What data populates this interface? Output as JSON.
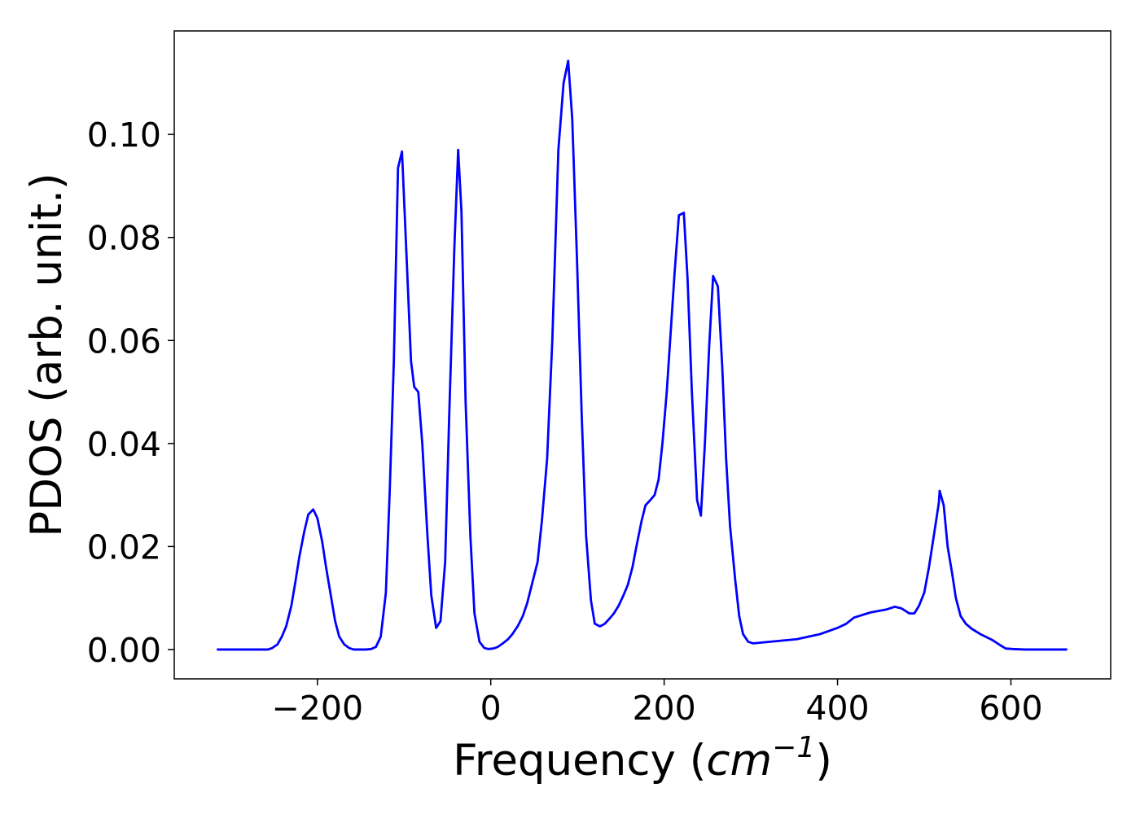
{
  "chart_data": {
    "type": "line",
    "xlabel": [
      "Frequency (",
      "cm",
      "−1",
      ")"
    ],
    "ylabel": "PDOS (arb. unit.)",
    "xlim": [
      -365.1,
      715.1
    ],
    "ylim": [
      -0.0057,
      0.1201
    ],
    "xticks": [
      {
        "value": -200,
        "label": "−200"
      },
      0,
      200,
      400,
      600
    ],
    "yticks": [
      {
        "value": 0,
        "label": "0.00"
      },
      {
        "value": 0.02,
        "label": "0.02"
      },
      {
        "value": 0.04,
        "label": "0.04"
      },
      {
        "value": 0.06,
        "label": "0.06"
      },
      {
        "value": 0.08,
        "label": "0.08"
      },
      {
        "value": 0.1,
        "label": "0.10"
      }
    ],
    "x": [
      -316,
      -257,
      -252,
      -246,
      -241,
      -236,
      -230,
      -225.5,
      -220.8,
      -215,
      -210.5,
      -204.8,
      -200,
      -194.5,
      -190,
      -184,
      -179.5,
      -174.8,
      -169,
      -163.5,
      -158,
      -143.8,
      -138,
      -132.5,
      -126.9,
      -121,
      -116.5,
      -111.8,
      -107,
      -102.4,
      -96.8,
      -92,
      -88.3,
      -83.6,
      -79,
      -73,
      -68.6,
      -63,
      -58,
      -52.6,
      -48,
      -42,
      -37.6,
      -33.8,
      -29,
      -23.5,
      -18.8,
      -13,
      -7.5,
      -3,
      3,
      8,
      14,
      20,
      25,
      31,
      37,
      42,
      48,
      54,
      59,
      65,
      71,
      78,
      84,
      89.3,
      94,
      99.6,
      105,
      110,
      115.6,
      120,
      126,
      131.5,
      137,
      142,
      147.5,
      153,
      158,
      163.5,
      168,
      174,
      178.5,
      184,
      189,
      193.6,
      198,
      203,
      207.7,
      212,
      217,
      222.7,
      227,
      232,
      238,
      242.4,
      247,
      252,
      256.5,
      262,
      267,
      271.5,
      276,
      282,
      286.6,
      291,
      297,
      302.6,
      353,
      380,
      400,
      410,
      419,
      438,
      457,
      466,
      473.6,
      483,
      488.6,
      494,
      500,
      505.5,
      511,
      516.9,
      517.8,
      522.5,
      527,
      532,
      536.5,
      542,
      548,
      555,
      564.7,
      579,
      588,
      594,
      602,
      616,
      665
    ],
    "series": [
      {
        "color": "#0000ff",
        "values": [
          0,
          0,
          0.0003,
          0.001,
          0.0025,
          0.0045,
          0.0085,
          0.013,
          0.018,
          0.023,
          0.0262,
          0.0272,
          0.0255,
          0.021,
          0.016,
          0.01,
          0.0055,
          0.0025,
          0.001,
          0.0003,
          0,
          0,
          0.0001,
          0.0005,
          0.0025,
          0.011,
          0.031,
          0.056,
          0.0935,
          0.0967,
          0.075,
          0.056,
          0.051,
          0.05,
          0.04,
          0.022,
          0.0105,
          0.0042,
          0.0055,
          0.017,
          0.045,
          0.078,
          0.097,
          0.085,
          0.048,
          0.022,
          0.007,
          0.0015,
          0.0003,
          0.0001,
          0.0002,
          0.0005,
          0.0012,
          0.002,
          0.003,
          0.0045,
          0.0065,
          0.009,
          0.013,
          0.017,
          0.025,
          0.037,
          0.06,
          0.097,
          0.11,
          0.1143,
          0.103,
          0.075,
          0.045,
          0.022,
          0.0095,
          0.005,
          0.0045,
          0.005,
          0.006,
          0.007,
          0.0085,
          0.0105,
          0.0125,
          0.016,
          0.02,
          0.025,
          0.028,
          0.029,
          0.03,
          0.033,
          0.04,
          0.05,
          0.062,
          0.073,
          0.0843,
          0.0848,
          0.072,
          0.05,
          0.029,
          0.026,
          0.04,
          0.059,
          0.0725,
          0.0705,
          0.055,
          0.037,
          0.024,
          0.0135,
          0.0065,
          0.003,
          0.0015,
          0.0012,
          0.002,
          0.003,
          0.0042,
          0.005,
          0.0062,
          0.0072,
          0.0078,
          0.0083,
          0.008,
          0.007,
          0.007,
          0.0085,
          0.011,
          0.016,
          0.022,
          0.0285,
          0.0308,
          0.028,
          0.02,
          0.015,
          0.01,
          0.0065,
          0.005,
          0.004,
          0.003,
          0.0018,
          0.0008,
          0.0002,
          0.0001,
          0,
          0
        ]
      }
    ]
  }
}
